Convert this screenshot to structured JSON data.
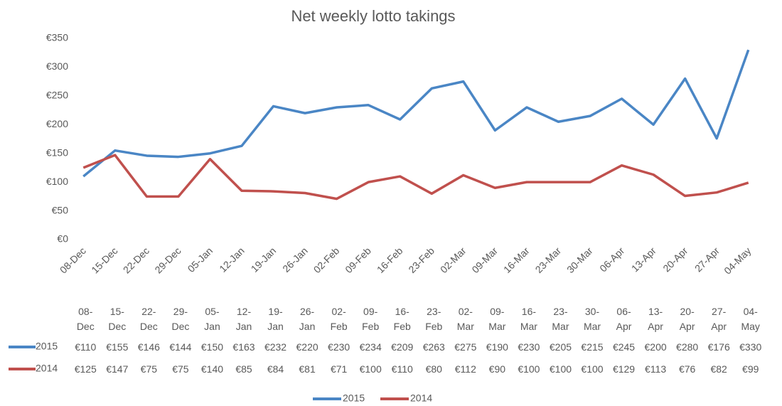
{
  "chart_data": {
    "type": "line",
    "title": "Net weekly lotto takings",
    "categories": [
      "08-Dec",
      "15-Dec",
      "22-Dec",
      "29-Dec",
      "05-Jan",
      "12-Jan",
      "19-Jan",
      "26-Jan",
      "02-Feb",
      "09-Feb",
      "16-Feb",
      "23-Feb",
      "02-Mar",
      "09-Mar",
      "16-Mar",
      "23-Mar",
      "30-Mar",
      "06-Apr",
      "13-Apr",
      "20-Apr",
      "27-Apr",
      "04-May"
    ],
    "series": [
      {
        "name": "2015",
        "color": "#4a86c5",
        "values": [
          110,
          155,
          146,
          144,
          150,
          163,
          232,
          220,
          230,
          234,
          209,
          263,
          275,
          190,
          230,
          205,
          215,
          245,
          200,
          280,
          176,
          330
        ],
        "value_labels": [
          "€110",
          "€155",
          "€146",
          "€144",
          "€150",
          "€163",
          "€232",
          "€220",
          "€230",
          "€234",
          "€209",
          "€263",
          "€275",
          "€190",
          "€230",
          "€205",
          "€215",
          "€245",
          "€200",
          "€280",
          "€176",
          "€330"
        ]
      },
      {
        "name": "2014",
        "color": "#c0504d",
        "values": [
          125,
          147,
          75,
          75,
          140,
          85,
          84,
          81,
          71,
          100,
          110,
          80,
          112,
          90,
          100,
          100,
          100,
          129,
          113,
          76,
          82,
          99
        ],
        "value_labels": [
          "€125",
          "€147",
          "€75",
          "€75",
          "€140",
          "€85",
          "€84",
          "€81",
          "€71",
          "€100",
          "€110",
          "€80",
          "€112",
          "€90",
          "€100",
          "€100",
          "€100",
          "€129",
          "€113",
          "€76",
          "€82",
          "€99"
        ]
      }
    ],
    "ylim": [
      0,
      350
    ],
    "yticks": [
      {
        "value": 0,
        "label": "€0"
      },
      {
        "value": 50,
        "label": "€50"
      },
      {
        "value": 100,
        "label": "€100"
      },
      {
        "value": 150,
        "label": "€150"
      },
      {
        "value": 200,
        "label": "€200"
      },
      {
        "value": 250,
        "label": "€250"
      },
      {
        "value": 300,
        "label": "€300"
      },
      {
        "value": 350,
        "label": "€350"
      }
    ],
    "grid": false,
    "legend": "bottom"
  }
}
